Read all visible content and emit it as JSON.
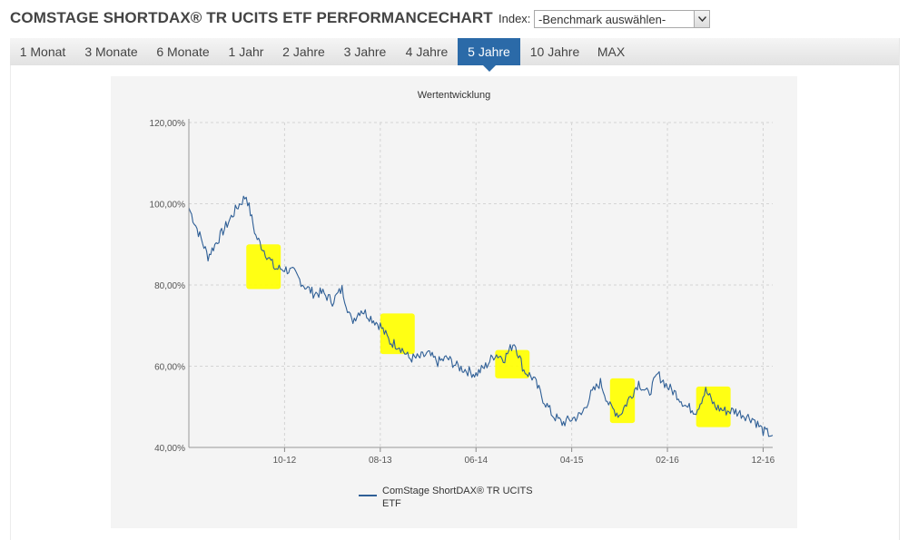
{
  "header": {
    "title": "COMSTAGE SHORTDAX® TR UCITS ETF PERFORMANCECHART",
    "index_label": "Index:",
    "index_select_value": "-Benchmark auswählen-"
  },
  "tabs": [
    {
      "label": "1 Monat",
      "active": false
    },
    {
      "label": "3 Monate",
      "active": false
    },
    {
      "label": "6 Monate",
      "active": false
    },
    {
      "label": "1 Jahr",
      "active": false
    },
    {
      "label": "2 Jahre",
      "active": false
    },
    {
      "label": "3 Jahre",
      "active": false
    },
    {
      "label": "4 Jahre",
      "active": false
    },
    {
      "label": "5 Jahre",
      "active": true
    },
    {
      "label": "10 Jahre",
      "active": false
    },
    {
      "label": "MAX",
      "active": false
    }
  ],
  "colors": {
    "accent": "#2b6aa8",
    "series": "#2f5f96",
    "highlight": "#ffff00",
    "grid": "#d4d4d4"
  },
  "chart_data": {
    "type": "line",
    "title": "Wertentwicklung",
    "xlabel": "",
    "ylabel": "",
    "ylim": [
      40,
      120
    ],
    "y_ticks": [
      "40,00%",
      "60,00%",
      "80,00%",
      "100,00%",
      "120,00%"
    ],
    "y_tick_values": [
      40,
      60,
      80,
      100,
      120
    ],
    "x_ticks": [
      "10-12",
      "08-13",
      "06-14",
      "04-15",
      "02-16",
      "12-16"
    ],
    "x_tick_dates": [
      "2012-10",
      "2013-08",
      "2014-06",
      "2015-04",
      "2016-02",
      "2016-12"
    ],
    "x_range": [
      "2011-12",
      "2017-01"
    ],
    "grid": true,
    "legend_position": "bottom",
    "series": [
      {
        "name": "ComStage ShortDAX® TR UCITS ETF",
        "x": [
          "2011-12",
          "2012-01",
          "2012-02",
          "2012-03",
          "2012-04",
          "2012-05",
          "2012-06",
          "2012-07",
          "2012-08",
          "2012-09",
          "2012-10",
          "2012-11",
          "2012-12",
          "2013-01",
          "2013-02",
          "2013-03",
          "2013-04",
          "2013-05",
          "2013-06",
          "2013-07",
          "2013-08",
          "2013-09",
          "2013-10",
          "2013-11",
          "2013-12",
          "2014-01",
          "2014-02",
          "2014-03",
          "2014-04",
          "2014-05",
          "2014-06",
          "2014-07",
          "2014-08",
          "2014-09",
          "2014-10",
          "2014-11",
          "2014-12",
          "2015-01",
          "2015-02",
          "2015-03",
          "2015-04",
          "2015-05",
          "2015-06",
          "2015-07",
          "2015-08",
          "2015-09",
          "2015-10",
          "2015-11",
          "2015-12",
          "2016-01",
          "2016-02",
          "2016-03",
          "2016-04",
          "2016-05",
          "2016-06",
          "2016-07",
          "2016-08",
          "2016-09",
          "2016-10",
          "2016-11",
          "2016-12",
          "2017-01"
        ],
        "values": [
          99,
          93,
          87,
          91,
          95,
          99,
          102,
          92,
          88,
          84,
          84,
          83,
          80,
          78,
          78,
          76,
          79,
          71,
          74,
          72,
          70,
          66,
          65,
          62,
          62,
          63,
          61,
          62,
          60,
          59,
          58,
          60,
          63,
          62,
          66,
          59,
          57,
          52,
          48,
          46,
          47,
          48,
          53,
          56,
          50,
          48,
          52,
          56,
          53,
          58,
          55,
          53,
          50,
          49,
          54,
          50,
          49,
          49,
          48,
          47,
          44,
          43
        ]
      }
    ],
    "highlights": [
      {
        "x_from": "2012-06",
        "x_to": "2012-09",
        "y_from": 79,
        "y_to": 90
      },
      {
        "x_from": "2013-08",
        "x_to": "2013-11",
        "y_from": 63,
        "y_to": 73
      },
      {
        "x_from": "2014-08",
        "x_to": "2014-11",
        "y_from": 57,
        "y_to": 64
      },
      {
        "x_from": "2015-08",
        "x_to": "2015-10",
        "y_from": 46,
        "y_to": 57
      },
      {
        "x_from": "2016-05",
        "x_to": "2016-08",
        "y_from": 45,
        "y_to": 55
      }
    ]
  }
}
